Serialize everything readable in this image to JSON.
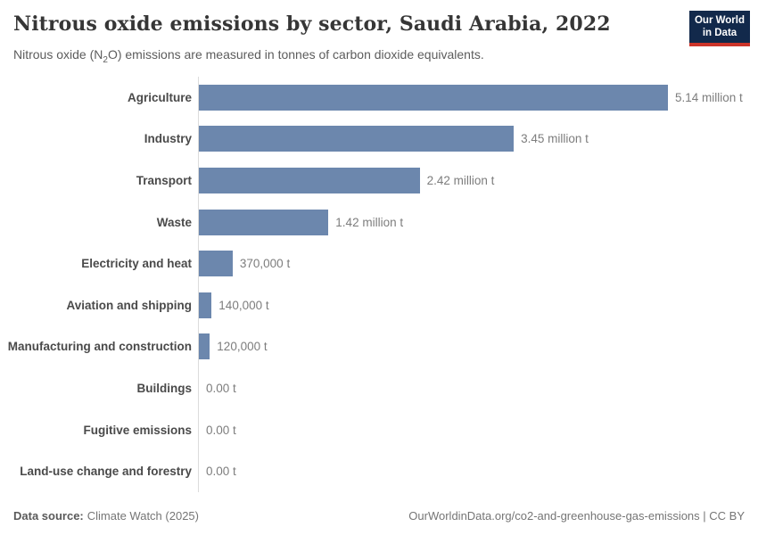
{
  "header": {
    "title": "Nitrous oxide emissions by sector, Saudi Arabia, 2022",
    "subtitle_pre": "Nitrous oxide (N",
    "subtitle_sub": "2",
    "subtitle_post": "O) emissions are measured in tonnes of carbon dioxide equivalents.",
    "logo": {
      "line1": "Our World",
      "line2": "in Data",
      "bg_color": "#12294b",
      "accent_color": "#cc342a"
    }
  },
  "chart_data": {
    "type": "bar",
    "orientation": "horizontal",
    "title": "Nitrous oxide emissions by sector, Saudi Arabia, 2022",
    "unit": "tonnes of carbon dioxide equivalents",
    "xlabel": "",
    "ylabel": "",
    "xlim": [
      0,
      5140000
    ],
    "grid": false,
    "legend": false,
    "bar_color": "#6c87ad",
    "axis_line_color": "#dcdcdc",
    "categories": [
      "Agriculture",
      "Industry",
      "Transport",
      "Waste",
      "Electricity and heat",
      "Aviation and shipping",
      "Manufacturing and construction",
      "Buildings",
      "Fugitive emissions",
      "Land-use change and forestry"
    ],
    "values": [
      5140000,
      3450000,
      2420000,
      1420000,
      370000,
      140000,
      120000,
      0,
      0,
      0
    ],
    "value_labels": [
      "5.14 million t",
      "3.45 million t",
      "2.42 million t",
      "1.42 million t",
      "370,000 t",
      "140,000 t",
      "120,000 t",
      "0.00 t",
      "0.00 t",
      "0.00 t"
    ]
  },
  "footer": {
    "source_label": "Data source:",
    "source_value": "Climate Watch (2025)",
    "rights": "OurWorldinData.org/co2-and-greenhouse-gas-emissions | CC BY"
  }
}
